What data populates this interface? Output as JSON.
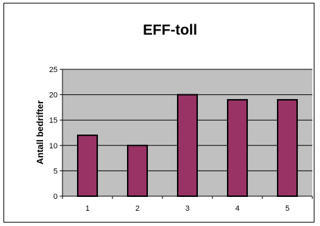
{
  "chart_data": {
    "type": "bar",
    "title": "EFF-toll",
    "xlabel": "",
    "ylabel": "Antall bedrifter",
    "categories": [
      "1",
      "2",
      "3",
      "4",
      "5"
    ],
    "values": [
      12,
      10,
      20,
      19,
      19
    ],
    "ylim": [
      0,
      25
    ],
    "yticks": [
      0,
      5,
      10,
      15,
      20,
      25
    ],
    "grid": true,
    "legend": "none",
    "colors": {
      "bar": "#993366",
      "bar_border": "#000000",
      "plot_background": "#c0c0c0",
      "gridline": "#000000"
    }
  }
}
